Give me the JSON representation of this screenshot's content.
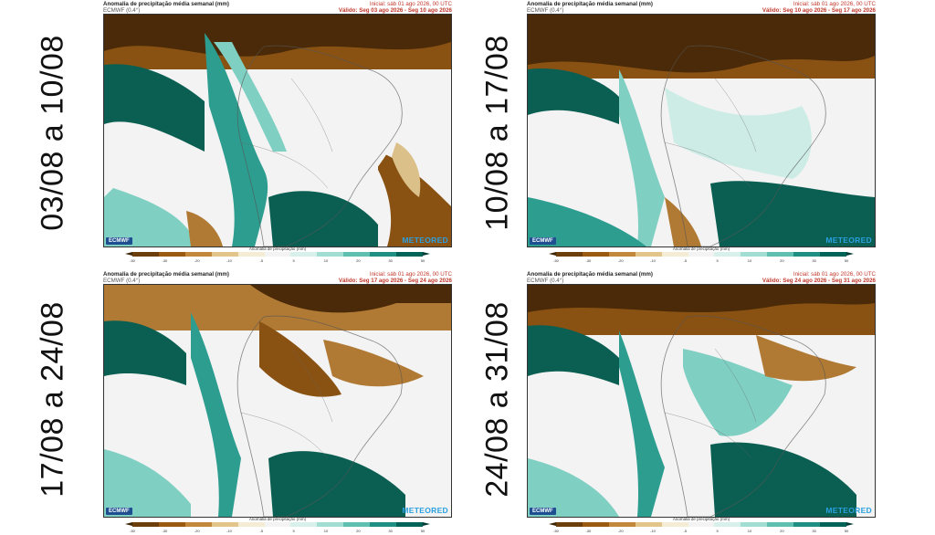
{
  "row_labels": [
    "03/08 a 10/08",
    "10/08 a 17/08",
    "17/08 a 24/08",
    "24/08 a 31/08"
  ],
  "colorbar": {
    "title": "Anomalia de precipitação (mm)",
    "ticks": [
      "-50",
      "-30",
      "-20",
      "-10",
      "-5",
      "5",
      "10",
      "20",
      "30",
      "50"
    ],
    "colors": [
      "#3d2406",
      "#6b3e0b",
      "#9a5a12",
      "#c2883c",
      "#e3c58c",
      "#f5ecd4",
      "#f3f3f3",
      "#d7f0ec",
      "#a2ddd3",
      "#5fbfb0",
      "#1f8f83",
      "#006358",
      "#003c34"
    ]
  },
  "panels": [
    {
      "title": "Anomalia de precipitação média semanal (mm)",
      "model": "ECMWF (0.4°)",
      "init": "Inicial: sáb 01 ago 2026, 00 UTC",
      "valid": "Válido: Seg 03 ago 2026 - Seg 10 ago 2026",
      "logo_left": "ECMWF",
      "logo_right": "METEORED",
      "colorbar_title": "Anomalia de precipitação (mm)"
    },
    {
      "title": "Anomalia de precipitação média semanal (mm)",
      "model": "ECMWF (0.4°)",
      "init": "Inicial: sáb 01 ago 2026, 00 UTC",
      "valid": "Válido: Seg 10 ago 2026 - Seg 17 ago 2026",
      "logo_left": "ECMWF",
      "logo_right": "METEORED",
      "colorbar_title": "Anomalia de precipitação (mm)"
    },
    {
      "title": "Anomalia de precipitação média semanal (mm)",
      "model": "ECMWF (0.4°)",
      "init": "Inicial: sáb 01 ago 2026, 00 UTC",
      "valid": "Válido: Seg 17 ago 2026 - Seg 24 ago 2026",
      "logo_left": "ECMWF",
      "logo_right": "METEORED",
      "colorbar_title": "Anomalia de precipitação (mm)"
    },
    {
      "title": "Anomalia de precipitação média semanal (mm)",
      "model": "ECMWF (0.4°)",
      "init": "Inicial: sáb 01 ago 2026, 00 UTC",
      "valid": "Válido: Seg 24 ago 2026 - Seg 31 ago 2026",
      "logo_left": "ECMWF",
      "logo_right": "METEORED",
      "colorbar_title": "Anomalia de precipitação (mm)"
    }
  ]
}
